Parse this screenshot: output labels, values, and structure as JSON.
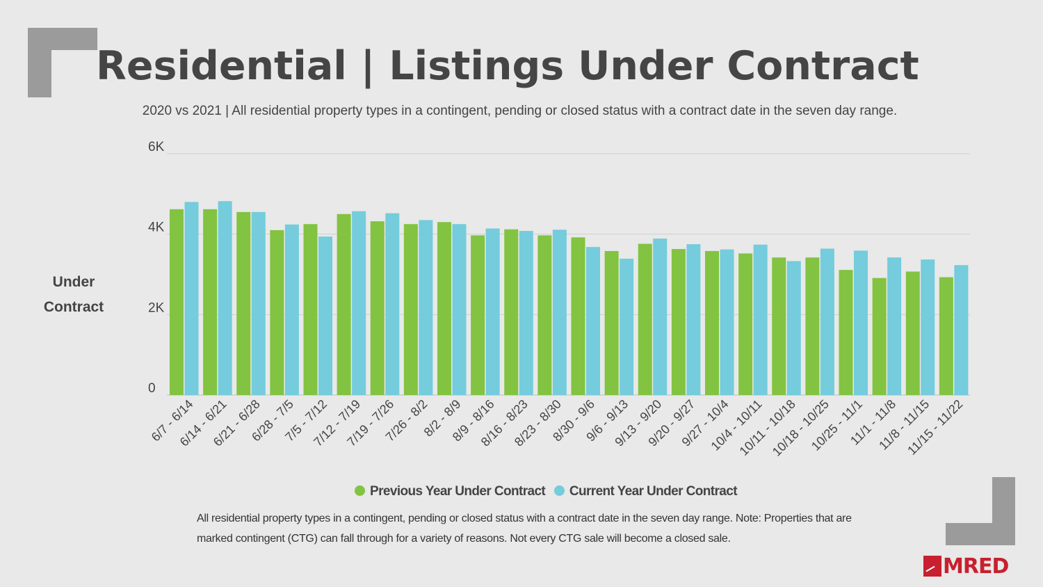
{
  "header": {
    "title": "Residential | Listings Under Contract",
    "subtitle": "2020 vs 2021 | All residential property types in a contingent, pending or closed status with a contract date in the seven day range."
  },
  "y_axis_label": "Under Contract",
  "legend": {
    "previous": "Previous Year Under Contract",
    "current": "Current Year Under Contract"
  },
  "footnote": "All residential property types in a contingent, pending or closed status with a contract date in the seven day range. Note: Properties that are marked contingent (CTG) can fall through for a variety of reasons. Not every CTG sale will become a closed sale.",
  "logo_text": "MRED",
  "colors": {
    "previous": "#82c341",
    "current": "#74ccdc",
    "grid": "#cfcfcf",
    "axis_text": "#444444"
  },
  "chart_data": {
    "type": "bar",
    "title": "Residential | Listings Under Contract",
    "ylabel": "Under Contract",
    "xlabel": "",
    "ylim": [
      0,
      6000
    ],
    "yticks": [
      {
        "value": 0,
        "label": "0"
      },
      {
        "value": 2000,
        "label": "2K"
      },
      {
        "value": 4000,
        "label": "4K"
      },
      {
        "value": 6000,
        "label": "6K"
      }
    ],
    "categories": [
      "6/7 - 6/14",
      "6/14 - 6/21",
      "6/21 - 6/28",
      "6/28 - 7/5",
      "7/5 - 7/12",
      "7/12 - 7/19",
      "7/19 - 7/26",
      "7/26 - 8/2",
      "8/2 - 8/9",
      "8/9 - 8/16",
      "8/16 - 8/23",
      "8/23 - 8/30",
      "8/30 - 9/6",
      "9/6 - 9/13",
      "9/13 - 9/20",
      "9/20 - 9/27",
      "9/27 - 10/4",
      "10/4 - 10/11",
      "10/11 - 10/18",
      "10/18 - 10/25",
      "10/25 - 11/1",
      "11/1 - 11/8",
      "11/8 - 11/15",
      "11/15 - 11/22"
    ],
    "series": [
      {
        "name": "Previous Year Under Contract",
        "values": [
          4620,
          4620,
          4550,
          4100,
          4250,
          4500,
          4320,
          4250,
          4300,
          3970,
          4120,
          3970,
          3920,
          3580,
          3760,
          3630,
          3580,
          3520,
          3420,
          3420,
          3110,
          2910,
          3070,
          2930
        ]
      },
      {
        "name": "Current Year Under Contract",
        "values": [
          4800,
          4820,
          4550,
          4240,
          3940,
          4570,
          4520,
          4350,
          4250,
          4140,
          4080,
          4110,
          3680,
          3390,
          3890,
          3750,
          3620,
          3740,
          3330,
          3640,
          3590,
          3420,
          3370,
          3230
        ]
      }
    ],
    "grid": true,
    "legend_position": "bottom-center"
  }
}
